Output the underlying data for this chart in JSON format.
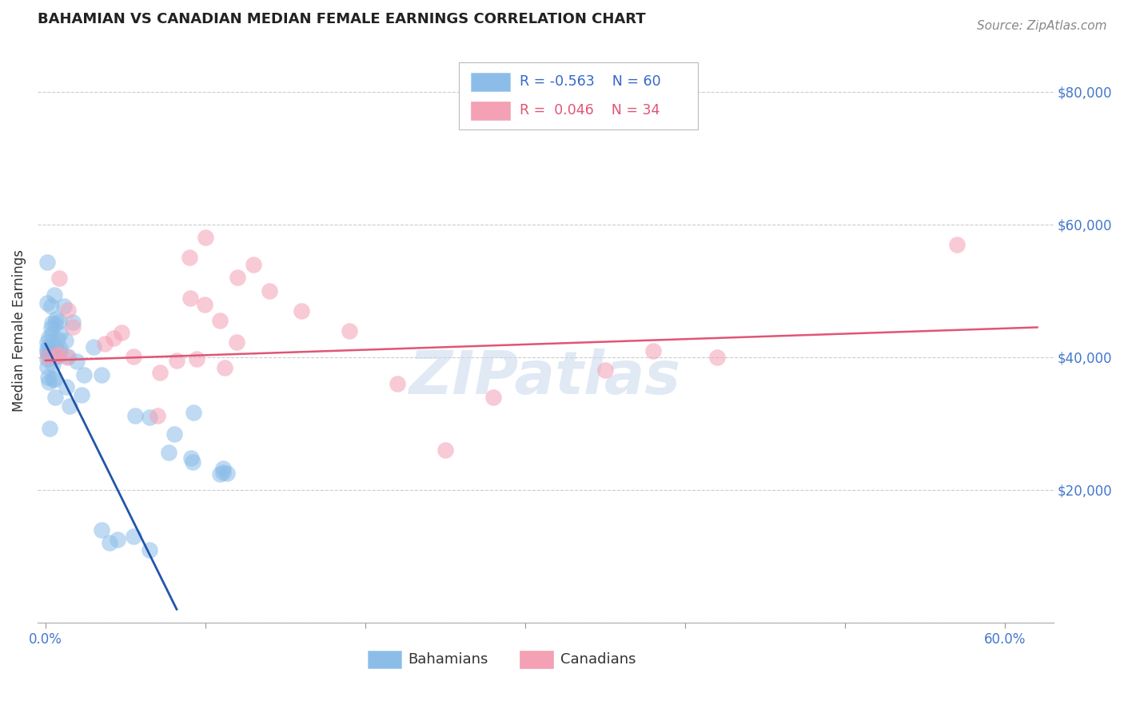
{
  "title": "BAHAMIAN VS CANADIAN MEDIAN FEMALE EARNINGS CORRELATION CHART",
  "source": "Source: ZipAtlas.com",
  "ylabel": "Median Female Earnings",
  "background_color": "#ffffff",
  "plot_bg_color": "#ffffff",
  "grid_color": "#cccccc",
  "bahamian_color": "#8bbde8",
  "canadian_color": "#f4a0b5",
  "bahamian_line_color": "#2255aa",
  "canadian_line_color": "#e05575",
  "bahamian_R": -0.563,
  "bahamian_N": 60,
  "canadian_R": 0.046,
  "canadian_N": 34,
  "watermark": "ZIPatlas",
  "ytick_values": [
    0,
    20000,
    40000,
    60000,
    80000
  ],
  "ytick_labels": [
    "",
    "$20,000",
    "$40,000",
    "$60,000",
    "$80,000"
  ],
  "xtick_values": [
    0.0,
    0.1,
    0.2,
    0.3,
    0.4,
    0.5,
    0.6
  ],
  "xtick_shown_labels": [
    "0.0%",
    "",
    "",
    "",
    "",
    "",
    "60.0%"
  ],
  "xlim": [
    -0.005,
    0.63
  ],
  "ylim": [
    5000,
    88000
  ],
  "tick_color": "#4477cc",
  "legend_R_blue": "#3366cc",
  "legend_R_pink": "#e05575",
  "title_fontsize": 13,
  "source_fontsize": 11,
  "tick_fontsize": 12,
  "ylabel_fontsize": 12,
  "bah_line_x0": 0.0,
  "bah_line_x1": 0.082,
  "bah_line_y0": 42000,
  "bah_line_y1": 2000,
  "can_line_x0": 0.0,
  "can_line_x1": 0.62,
  "can_line_y0": 39500,
  "can_line_y1": 44500
}
